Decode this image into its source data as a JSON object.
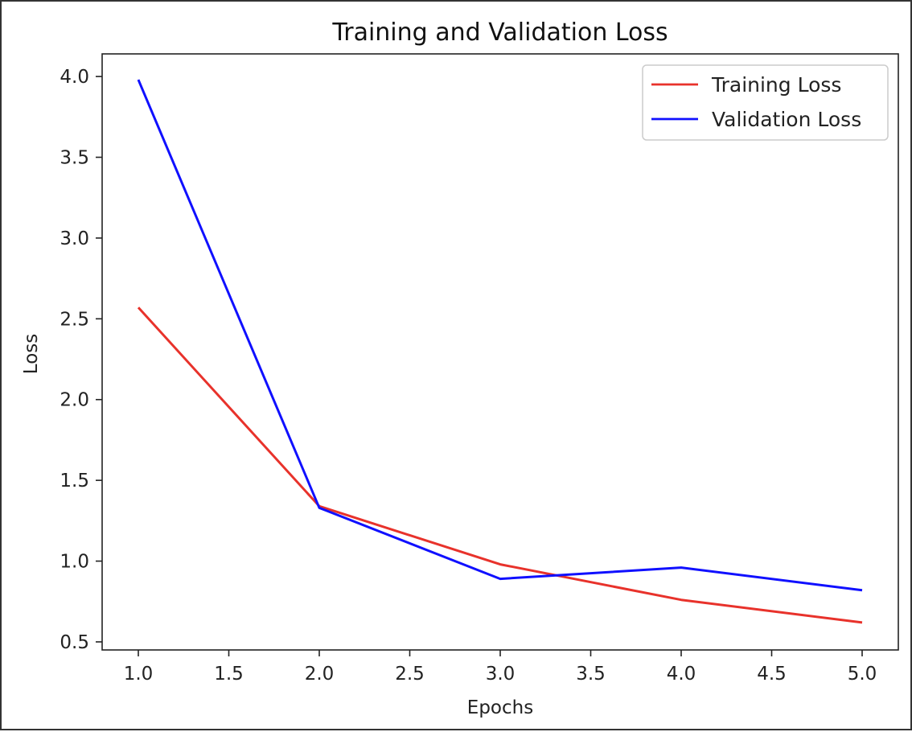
{
  "chart_data": {
    "type": "line",
    "title": "Training and Validation Loss",
    "xlabel": "Epochs",
    "ylabel": "Loss",
    "x": [
      1,
      2,
      3,
      4,
      5
    ],
    "xlim": [
      0.8,
      5.2
    ],
    "ylim": [
      0.45,
      4.14
    ],
    "xticks": [
      1.0,
      1.5,
      2.0,
      2.5,
      3.0,
      3.5,
      4.0,
      4.5,
      5.0
    ],
    "xtick_labels": [
      "1.0",
      "1.5",
      "2.0",
      "2.5",
      "3.0",
      "3.5",
      "4.0",
      "4.5",
      "5.0"
    ],
    "yticks": [
      0.5,
      1.0,
      1.5,
      2.0,
      2.5,
      3.0,
      3.5,
      4.0
    ],
    "ytick_labels": [
      "0.5",
      "1.0",
      "1.5",
      "2.0",
      "2.5",
      "3.0",
      "3.5",
      "4.0"
    ],
    "grid": false,
    "legend_position": "top-right",
    "series": [
      {
        "name": "Training Loss",
        "color": "#e8322b",
        "values": [
          2.57,
          1.34,
          0.98,
          0.76,
          0.62
        ]
      },
      {
        "name": "Validation Loss",
        "color": "#1010ff",
        "values": [
          3.98,
          1.33,
          0.89,
          0.96,
          0.82
        ]
      }
    ]
  }
}
